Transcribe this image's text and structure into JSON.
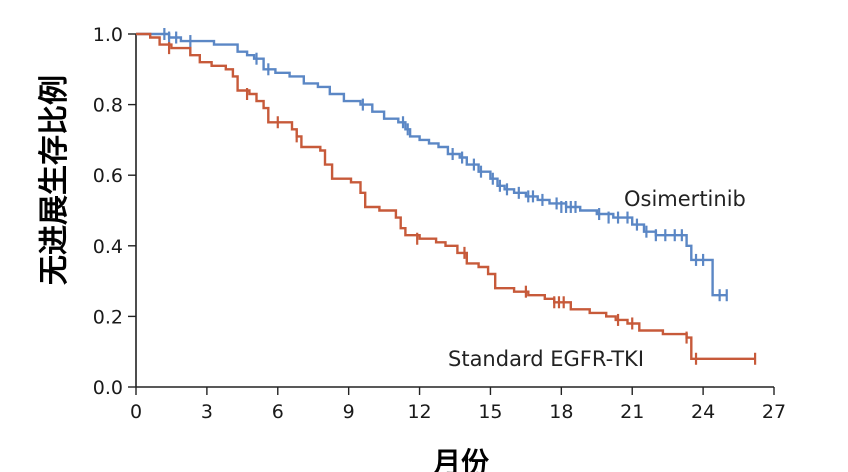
{
  "chart_data": {
    "type": "line",
    "title": "",
    "xlabel": "月份",
    "ylabel": "无进展生存比例",
    "xlim": [
      0,
      27
    ],
    "ylim": [
      0.0,
      1.0
    ],
    "x_ticks": [
      "0",
      "3",
      "6",
      "9",
      "12",
      "15",
      "18",
      "21",
      "24",
      "27"
    ],
    "y_ticks": [
      "0.0",
      "0.2",
      "0.4",
      "0.6",
      "0.8",
      "1.0"
    ],
    "grid": false,
    "series": [
      {
        "name": "Osimertinib",
        "color": "#5b87c5",
        "steps": [
          [
            0,
            1.0
          ],
          [
            1.4,
            0.99
          ],
          [
            1.9,
            0.98
          ],
          [
            2.6,
            0.98
          ],
          [
            3.3,
            0.97
          ],
          [
            3.9,
            0.97
          ],
          [
            4.3,
            0.95
          ],
          [
            4.7,
            0.94
          ],
          [
            5.0,
            0.93
          ],
          [
            5.4,
            0.9
          ],
          [
            5.9,
            0.89
          ],
          [
            6.5,
            0.88
          ],
          [
            7.1,
            0.86
          ],
          [
            7.7,
            0.85
          ],
          [
            8.2,
            0.83
          ],
          [
            8.8,
            0.81
          ],
          [
            9.5,
            0.8
          ],
          [
            10.0,
            0.78
          ],
          [
            10.5,
            0.76
          ],
          [
            11.1,
            0.75
          ],
          [
            11.4,
            0.73
          ],
          [
            11.6,
            0.71
          ],
          [
            12.0,
            0.7
          ],
          [
            12.4,
            0.69
          ],
          [
            12.8,
            0.68
          ],
          [
            13.2,
            0.66
          ],
          [
            13.7,
            0.65
          ],
          [
            14.0,
            0.63
          ],
          [
            14.5,
            0.61
          ],
          [
            15.0,
            0.59
          ],
          [
            15.3,
            0.57
          ],
          [
            15.6,
            0.56
          ],
          [
            16.0,
            0.55
          ],
          [
            16.5,
            0.54
          ],
          [
            17.0,
            0.53
          ],
          [
            17.5,
            0.52
          ],
          [
            18.2,
            0.51
          ],
          [
            18.8,
            0.5
          ],
          [
            19.5,
            0.49
          ],
          [
            20.2,
            0.48
          ],
          [
            21.0,
            0.46
          ],
          [
            21.5,
            0.44
          ],
          [
            22.0,
            0.43
          ],
          [
            23.3,
            0.4
          ],
          [
            23.5,
            0.36
          ],
          [
            24.3,
            0.36
          ],
          [
            24.4,
            0.26
          ],
          [
            25.0,
            0.26
          ]
        ],
        "censors": [
          [
            1.2,
            1.0
          ],
          [
            1.4,
            0.99
          ],
          [
            1.7,
            0.99
          ],
          [
            2.3,
            0.98
          ],
          [
            5.1,
            0.93
          ],
          [
            5.6,
            0.9
          ],
          [
            9.6,
            0.8
          ],
          [
            11.3,
            0.75
          ],
          [
            11.5,
            0.73
          ],
          [
            13.4,
            0.66
          ],
          [
            13.8,
            0.65
          ],
          [
            14.3,
            0.63
          ],
          [
            14.6,
            0.61
          ],
          [
            15.1,
            0.59
          ],
          [
            15.4,
            0.57
          ],
          [
            15.7,
            0.56
          ],
          [
            16.2,
            0.55
          ],
          [
            16.6,
            0.54
          ],
          [
            16.8,
            0.54
          ],
          [
            17.2,
            0.53
          ],
          [
            17.8,
            0.52
          ],
          [
            18.0,
            0.51
          ],
          [
            18.2,
            0.51
          ],
          [
            18.4,
            0.51
          ],
          [
            18.6,
            0.51
          ],
          [
            19.6,
            0.49
          ],
          [
            20.0,
            0.48
          ],
          [
            20.4,
            0.48
          ],
          [
            20.8,
            0.48
          ],
          [
            21.2,
            0.46
          ],
          [
            21.6,
            0.44
          ],
          [
            22.0,
            0.43
          ],
          [
            22.4,
            0.43
          ],
          [
            22.8,
            0.43
          ],
          [
            23.1,
            0.43
          ],
          [
            23.7,
            0.36
          ],
          [
            24.0,
            0.36
          ],
          [
            24.7,
            0.26
          ],
          [
            25.0,
            0.26
          ]
        ]
      },
      {
        "name": "Standard EGFR-TKI",
        "color": "#c75a3a",
        "steps": [
          [
            0,
            1.0
          ],
          [
            0.6,
            0.99
          ],
          [
            1.0,
            0.97
          ],
          [
            1.5,
            0.96
          ],
          [
            2.3,
            0.94
          ],
          [
            2.7,
            0.92
          ],
          [
            3.2,
            0.91
          ],
          [
            3.8,
            0.9
          ],
          [
            4.1,
            0.88
          ],
          [
            4.3,
            0.84
          ],
          [
            4.8,
            0.83
          ],
          [
            5.1,
            0.81
          ],
          [
            5.4,
            0.79
          ],
          [
            5.6,
            0.75
          ],
          [
            6.6,
            0.73
          ],
          [
            6.8,
            0.71
          ],
          [
            7.0,
            0.68
          ],
          [
            7.8,
            0.67
          ],
          [
            8.0,
            0.63
          ],
          [
            8.3,
            0.59
          ],
          [
            9.1,
            0.58
          ],
          [
            9.5,
            0.55
          ],
          [
            9.7,
            0.51
          ],
          [
            10.3,
            0.5
          ],
          [
            11.0,
            0.48
          ],
          [
            11.2,
            0.45
          ],
          [
            11.4,
            0.43
          ],
          [
            12.0,
            0.42
          ],
          [
            12.7,
            0.41
          ],
          [
            13.1,
            0.4
          ],
          [
            13.6,
            0.38
          ],
          [
            14.0,
            0.35
          ],
          [
            14.5,
            0.34
          ],
          [
            14.9,
            0.32
          ],
          [
            15.2,
            0.28
          ],
          [
            16.0,
            0.27
          ],
          [
            16.6,
            0.26
          ],
          [
            17.3,
            0.25
          ],
          [
            17.7,
            0.24
          ],
          [
            18.4,
            0.22
          ],
          [
            19.2,
            0.21
          ],
          [
            19.9,
            0.2
          ],
          [
            20.3,
            0.19
          ],
          [
            20.8,
            0.18
          ],
          [
            21.3,
            0.16
          ],
          [
            22.3,
            0.15
          ],
          [
            23.3,
            0.14
          ],
          [
            23.5,
            0.08
          ],
          [
            26.2,
            0.08
          ]
        ],
        "censors": [
          [
            1.4,
            0.96
          ],
          [
            4.7,
            0.83
          ],
          [
            6.0,
            0.75
          ],
          [
            6.8,
            0.71
          ],
          [
            11.9,
            0.42
          ],
          [
            13.9,
            0.38
          ],
          [
            16.5,
            0.27
          ],
          [
            17.7,
            0.24
          ],
          [
            17.9,
            0.24
          ],
          [
            18.1,
            0.24
          ],
          [
            20.4,
            0.19
          ],
          [
            21.0,
            0.18
          ],
          [
            23.3,
            0.14
          ],
          [
            23.7,
            0.08
          ],
          [
            26.2,
            0.08
          ]
        ]
      }
    ]
  }
}
